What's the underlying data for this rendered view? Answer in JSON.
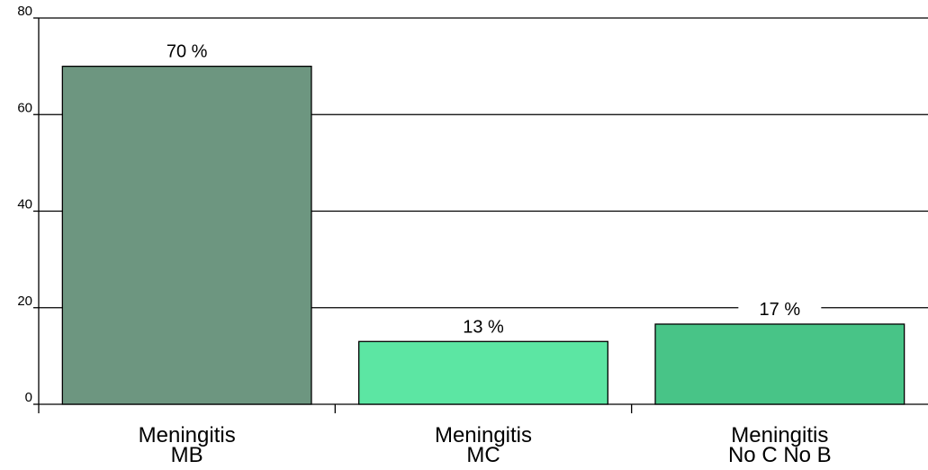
{
  "chart_data": {
    "type": "bar",
    "categories": [
      [
        "Meningitis",
        "MB"
      ],
      [
        "Meningitis",
        "MC"
      ],
      [
        "Meningitis",
        "No C No B"
      ]
    ],
    "values": [
      70,
      13,
      16.6
    ],
    "data_labels": [
      "70 %",
      "13 %",
      "17 %"
    ],
    "colors": [
      "#6d9680",
      "#5ce6a3",
      "#48c487"
    ],
    "title": "",
    "xlabel": "",
    "ylabel": "",
    "ylim": [
      0,
      80
    ],
    "yticks": [
      0,
      20,
      40,
      60,
      80
    ],
    "grid": true
  }
}
